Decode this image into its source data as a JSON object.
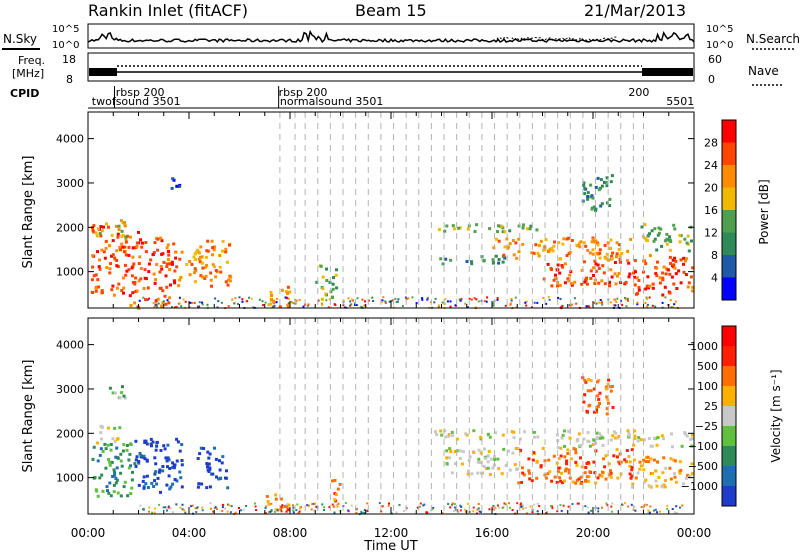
{
  "header": {
    "station": "Rankin Inlet (fitACF)",
    "beam": "Beam 15",
    "date": "21/Mar/2013"
  },
  "noise_panel": {
    "left_label": "N.Sky",
    "right_label": "N.Search",
    "left_ticks": [
      "10^5",
      "10^0"
    ],
    "right_ticks": [
      "10^5",
      "10^0"
    ]
  },
  "freq_panel": {
    "left_label_1": "Freq.",
    "left_label_2": "[MHz]",
    "left_ticks": [
      "18",
      "8"
    ],
    "right_label": "Nave",
    "right_ticks": [
      "60",
      "0"
    ]
  },
  "cpid_panel": {
    "label": "CPID",
    "entries": [
      {
        "text": "rbsp 200",
        "hour": 1.1,
        "row": 1
      },
      {
        "text": "twofsound 3501",
        "hour": 0.15,
        "row": 2
      },
      {
        "text": "rbsp 200",
        "hour": 7.55,
        "row": 1
      },
      {
        "text": "normalsound 3501",
        "hour": 7.6,
        "row": 2
      },
      {
        "text": "5501",
        "hour": 22.9,
        "row": 2
      },
      {
        "text": "200",
        "hour": 21.4,
        "row": 1
      }
    ]
  },
  "x_axis": {
    "title": "Time UT",
    "tick_labels": [
      "00:00",
      "04:00",
      "08:00",
      "12:00",
      "16:00",
      "20:00",
      "00:00"
    ]
  },
  "power_panel": {
    "ylabel": "Slant Range [km]",
    "ytick_labels": [
      "1000",
      "2000",
      "3000",
      "4000"
    ],
    "colorbar_title": "Power [dB]",
    "colorbar_ticks": [
      "4",
      "8",
      "12",
      "16",
      "20",
      "24",
      "28"
    ],
    "colors": [
      "#0000ff",
      "#1e5aa8",
      "#2e8b57",
      "#4f9f4f",
      "#f0b800",
      "#ff8c00",
      "#ff4500",
      "#ff0000"
    ]
  },
  "velocity_panel": {
    "ylabel": "Slant Range [km]",
    "ytick_labels": [
      "1000",
      "2000",
      "3000",
      "4000"
    ],
    "colorbar_title": "Velocity [m s⁻¹]",
    "colorbar_ticks": [
      "1000",
      "500",
      "100",
      "25",
      "−25",
      "−100",
      "−500",
      "−1000"
    ],
    "colors": [
      "#1e3cc8",
      "#1f6fb0",
      "#2e8b57",
      "#5fbf3f",
      "#c8c8c8",
      "#ffb000",
      "#ff7000",
      "#ff2000",
      "#ff0000"
    ]
  },
  "chart_data": {
    "type": "heatmap",
    "title": "Rankin Inlet (fitACF)",
    "xlabel": "Time UT",
    "ylabel": "Slant Range [km]",
    "xlim": [
      0,
      24
    ],
    "ylim": [
      180,
      4600
    ],
    "x_unit": "hours UT",
    "y_unit": "km",
    "scan_markers_hours": [
      7.6,
      8.2,
      8.6,
      9.1,
      9.6,
      10.1,
      10.6,
      11.1,
      11.6,
      12.1,
      12.6,
      13.1,
      13.6,
      14.1,
      14.6,
      15.1,
      15.6,
      16.1,
      16.6,
      17.1,
      17.6,
      18.1,
      18.6,
      19.1,
      19.6,
      20.1,
      20.6,
      21.1,
      21.6,
      22.0
    ],
    "power_regions": [
      {
        "t0": 0.1,
        "t1": 2.0,
        "r0": 500,
        "r1": 2100,
        "level": 6
      },
      {
        "t0": 0.2,
        "t1": 1.5,
        "r0": 1800,
        "r1": 2200,
        "level": 4
      },
      {
        "t0": 2.0,
        "t1": 3.6,
        "r0": 600,
        "r1": 1800,
        "level": 6
      },
      {
        "t0": 3.6,
        "t1": 4.6,
        "r0": 800,
        "r1": 1600,
        "level": 5
      },
      {
        "t0": 4.6,
        "t1": 5.6,
        "r0": 700,
        "r1": 1800,
        "level": 5
      },
      {
        "t0": 1.6,
        "t1": 3.2,
        "r0": 200,
        "r1": 500,
        "level": 6
      },
      {
        "t0": 3.2,
        "t1": 3.8,
        "r0": 2900,
        "r1": 3200,
        "level": 1
      },
      {
        "t0": 7.0,
        "t1": 8.0,
        "r0": 200,
        "r1": 700,
        "level": 5
      },
      {
        "t0": 9.0,
        "t1": 9.8,
        "r0": 400,
        "r1": 1200,
        "level": 3
      },
      {
        "t0": 13.7,
        "t1": 17.8,
        "r0": 1900,
        "r1": 2100,
        "level": 3
      },
      {
        "t0": 13.7,
        "t1": 16.5,
        "r0": 1200,
        "r1": 1400,
        "level": 2
      },
      {
        "t0": 16.0,
        "t1": 21.5,
        "r0": 1300,
        "r1": 1800,
        "level": 5
      },
      {
        "t0": 18.0,
        "t1": 21.5,
        "r0": 700,
        "r1": 1300,
        "level": 6
      },
      {
        "t0": 21.5,
        "t1": 23.9,
        "r0": 500,
        "r1": 1400,
        "level": 6
      },
      {
        "t0": 21.8,
        "t1": 23.9,
        "r0": 1500,
        "r1": 2100,
        "level": 3
      },
      {
        "t0": 19.5,
        "t1": 20.8,
        "r0": 2400,
        "r1": 3200,
        "level": 2
      }
    ],
    "velocity_regions": [
      {
        "t0": 0.1,
        "t1": 1.8,
        "r0": 600,
        "r1": 1800,
        "level": 2
      },
      {
        "t0": 1.8,
        "t1": 3.8,
        "r0": 700,
        "r1": 1900,
        "level": 0
      },
      {
        "t0": 4.3,
        "t1": 5.5,
        "r0": 800,
        "r1": 1700,
        "level": 0
      },
      {
        "t0": 0.2,
        "t1": 1.2,
        "r0": 1800,
        "r1": 2200,
        "level": 4
      },
      {
        "t0": 0.8,
        "t1": 1.5,
        "r0": 2800,
        "r1": 3200,
        "level": 3
      },
      {
        "t0": 7.0,
        "t1": 7.9,
        "r0": 300,
        "r1": 700,
        "level": 6
      },
      {
        "t0": 9.6,
        "t1": 10.1,
        "r0": 500,
        "r1": 1000,
        "level": 6
      },
      {
        "t0": 13.7,
        "t1": 18.0,
        "r0": 1900,
        "r1": 2100,
        "level": 4
      },
      {
        "t0": 14.0,
        "t1": 17.0,
        "r0": 1100,
        "r1": 1700,
        "level": 4
      },
      {
        "t0": 17.0,
        "t1": 21.5,
        "r0": 900,
        "r1": 1700,
        "level": 6
      },
      {
        "t0": 18.5,
        "t1": 23.9,
        "r0": 1700,
        "r1": 2100,
        "level": 4
      },
      {
        "t0": 21.5,
        "t1": 23.9,
        "r0": 800,
        "r1": 1500,
        "level": 5
      },
      {
        "t0": 19.5,
        "t1": 20.8,
        "r0": 2400,
        "r1": 3300,
        "level": 6
      }
    ]
  }
}
